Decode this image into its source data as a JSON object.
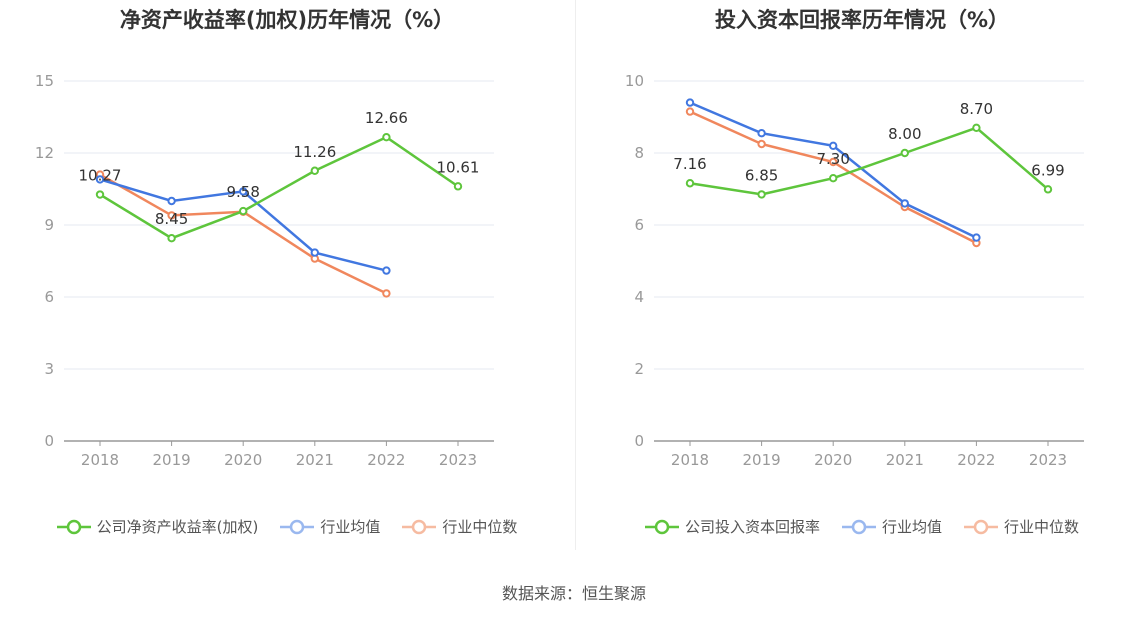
{
  "source": "数据来源：恒生聚源",
  "colors": {
    "company": "#5ec53c",
    "industry_avg": "#4177e0",
    "industry_median": "#f0875d",
    "legend_avg_light": "#9ab8ef",
    "legend_median_light": "#f6bba1",
    "grid": "#e6e9f2",
    "axis": "#999999",
    "tick_text": "#999999",
    "label_text": "#333333"
  },
  "chart_data": [
    {
      "type": "line",
      "title": "净资产收益率(加权)历年情况（%）",
      "categories": [
        "2018",
        "2019",
        "2020",
        "2021",
        "2022",
        "2023"
      ],
      "ylim": [
        0,
        15
      ],
      "yticks": [
        0,
        3,
        6,
        9,
        12,
        15
      ],
      "grid": true,
      "legend_position": "bottom",
      "series": [
        {
          "name": "公司净资产收益率(加权)",
          "key": "company",
          "values": [
            10.27,
            8.45,
            9.58,
            11.26,
            12.66,
            10.61
          ],
          "labels": [
            "10.27",
            "8.45",
            "9.58",
            "11.26",
            "12.66",
            "10.61"
          ]
        },
        {
          "name": "行业均值",
          "key": "industry_avg",
          "values": [
            10.9,
            10.0,
            10.4,
            7.85,
            7.1,
            null
          ]
        },
        {
          "name": "行业中位数",
          "key": "industry_median",
          "values": [
            11.1,
            9.4,
            9.55,
            7.6,
            6.15,
            null
          ]
        }
      ]
    },
    {
      "type": "line",
      "title": "投入资本回报率历年情况（%）",
      "categories": [
        "2018",
        "2019",
        "2020",
        "2021",
        "2022",
        "2023"
      ],
      "ylim": [
        0,
        10
      ],
      "yticks": [
        0,
        2,
        4,
        6,
        8,
        10
      ],
      "grid": true,
      "legend_position": "bottom",
      "series": [
        {
          "name": "公司投入资本回报率",
          "key": "company",
          "values": [
            7.16,
            6.85,
            7.3,
            8.0,
            8.7,
            6.99
          ],
          "labels": [
            "7.16",
            "6.85",
            "7.30",
            "8.00",
            "8.70",
            "6.99"
          ]
        },
        {
          "name": "行业均值",
          "key": "industry_avg",
          "values": [
            9.4,
            8.55,
            8.2,
            6.6,
            5.65,
            null
          ]
        },
        {
          "name": "行业中位数",
          "key": "industry_median",
          "values": [
            9.15,
            8.25,
            7.75,
            6.5,
            5.5,
            null
          ]
        }
      ]
    }
  ]
}
